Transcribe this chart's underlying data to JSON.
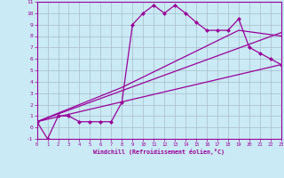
{
  "title": "",
  "xlabel": "Windchill (Refroidissement éolien,°C)",
  "xlim": [
    0,
    23
  ],
  "ylim": [
    -1,
    11
  ],
  "xticks": [
    0,
    1,
    2,
    3,
    4,
    5,
    6,
    7,
    8,
    9,
    10,
    11,
    12,
    13,
    14,
    15,
    16,
    17,
    18,
    19,
    20,
    21,
    22,
    23
  ],
  "yticks": [
    -1,
    0,
    1,
    2,
    3,
    4,
    5,
    6,
    7,
    8,
    9,
    10,
    11
  ],
  "bg_color": "#caeaf5",
  "line_color": "#990099",
  "grid_color": "#aabbcc",
  "line1_x": [
    0,
    1,
    2,
    3,
    4,
    5,
    6,
    7,
    8,
    9,
    10,
    11,
    12,
    13,
    14,
    15,
    16,
    17,
    18,
    19,
    20,
    21,
    22,
    23
  ],
  "line1_y": [
    0.5,
    -1,
    1,
    1,
    0.5,
    0.5,
    0.5,
    0.5,
    2.2,
    9,
    10,
    10.7,
    10,
    10.7,
    10,
    9.2,
    8.5,
    8.5,
    8.5,
    9.5,
    7,
    6.5,
    6,
    5.5
  ],
  "line2_x": [
    0,
    4,
    8,
    19,
    23
  ],
  "line2_y": [
    0.5,
    2,
    3.5,
    8.5,
    8.0
  ],
  "line3_x": [
    0,
    23
  ],
  "line3_y": [
    0.5,
    5.5
  ],
  "line4_x": [
    0,
    23
  ],
  "line4_y": [
    0.5,
    8.3
  ],
  "marker_size": 2.5,
  "line_width": 0.9
}
